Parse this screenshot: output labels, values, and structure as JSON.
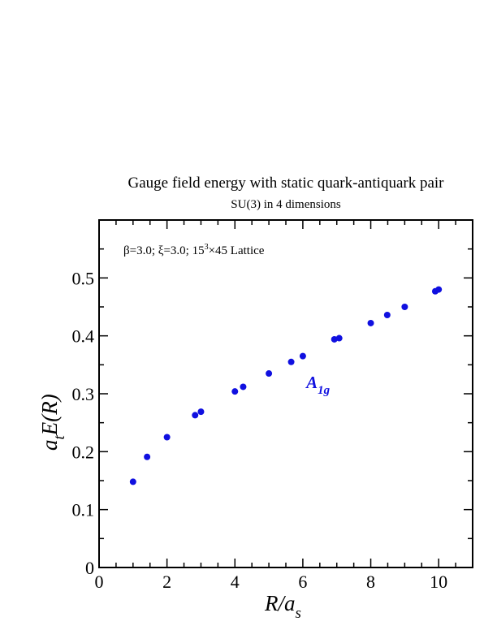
{
  "chart_data": {
    "type": "scatter",
    "title": "Gauge field energy with static quark-antiquark pair",
    "subtitle": "SU(3) in 4 dimensions",
    "xlabel": {
      "main": "R/a",
      "sub": "s"
    },
    "ylabel": {
      "pre": "a",
      "sub": "t",
      "post": "E(R)"
    },
    "xlim": [
      0,
      11
    ],
    "ylim": [
      0,
      0.6
    ],
    "x_ticks": [
      0,
      2,
      4,
      6,
      8,
      10
    ],
    "y_ticks": [
      0,
      0.1,
      0.2,
      0.3,
      0.4,
      0.5
    ],
    "x_minor_step": 0.5,
    "y_minor_step": 0.05,
    "annotation": {
      "parts": [
        "β=3.0;  ξ=3.0; 15",
        "3",
        "×45 Lattice"
      ]
    },
    "series": [
      {
        "name": "A1g",
        "label_main": "A",
        "label_sub": "1g",
        "label_at": {
          "x": 6.1,
          "y": 0.31
        },
        "color": "#1010e0",
        "points": [
          {
            "x": 1.0,
            "y": 0.148
          },
          {
            "x": 1.414,
            "y": 0.191
          },
          {
            "x": 2.0,
            "y": 0.225
          },
          {
            "x": 2.828,
            "y": 0.263
          },
          {
            "x": 3.0,
            "y": 0.269
          },
          {
            "x": 4.0,
            "y": 0.304
          },
          {
            "x": 4.243,
            "y": 0.312
          },
          {
            "x": 5.0,
            "y": 0.335
          },
          {
            "x": 5.657,
            "y": 0.355
          },
          {
            "x": 6.0,
            "y": 0.365
          },
          {
            "x": 6.928,
            "y": 0.394
          },
          {
            "x": 7.071,
            "y": 0.396
          },
          {
            "x": 8.0,
            "y": 0.422
          },
          {
            "x": 8.485,
            "y": 0.436
          },
          {
            "x": 9.0,
            "y": 0.45
          },
          {
            "x": 9.899,
            "y": 0.477
          },
          {
            "x": 10.0,
            "y": 0.48
          }
        ]
      }
    ]
  }
}
